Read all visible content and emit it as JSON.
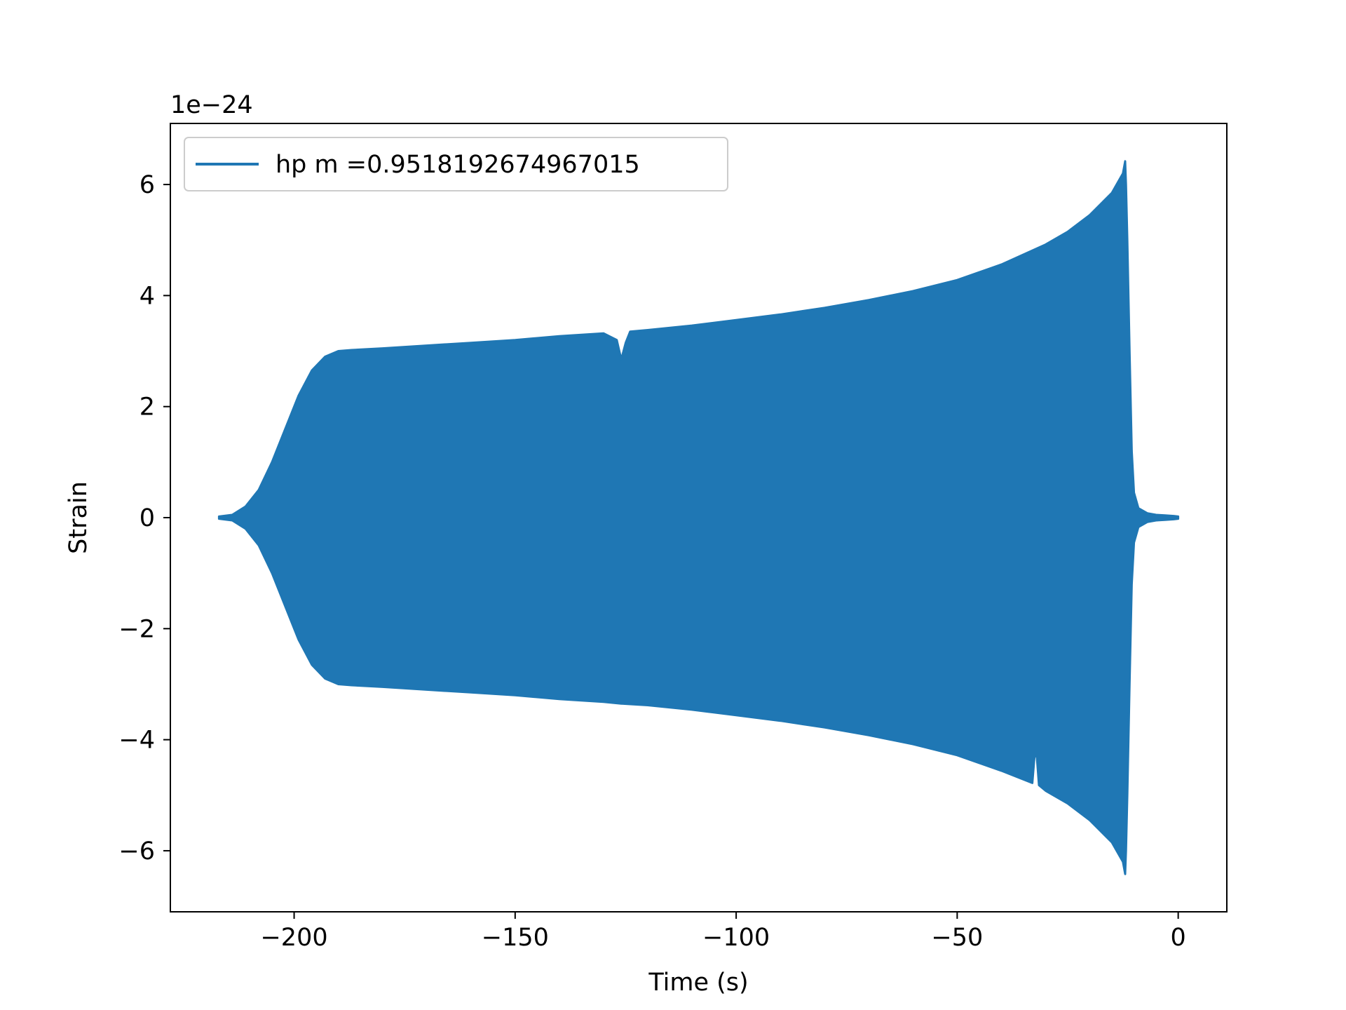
{
  "chart_data": {
    "type": "line",
    "title": "",
    "xlabel": "Time (s)",
    "ylabel": "Strain",
    "offset_text": "1e−24",
    "xlim": [
      -228,
      11
    ],
    "ylim": [
      -7.1,
      7.1
    ],
    "x_ticks": [
      -200,
      -150,
      -100,
      -50,
      0
    ],
    "x_tick_labels": [
      "−200",
      "−150",
      "−100",
      "−50",
      "0"
    ],
    "y_ticks": [
      -6,
      -4,
      -2,
      0,
      2,
      4,
      6
    ],
    "y_tick_labels": [
      "−6",
      "−4",
      "−2",
      "0",
      "2",
      "4",
      "6"
    ],
    "grid": false,
    "legend_position": "upper-left",
    "series": [
      {
        "name": "hp m =0.9518192674967015",
        "color": "#1f77b4",
        "envelope_upper": {
          "x": [
            -217,
            -214,
            -211,
            -208,
            -205,
            -202,
            -199,
            -196,
            -193,
            -190,
            -187,
            -180,
            -170,
            -160,
            -150,
            -140,
            -130,
            -127,
            -126,
            -125,
            -124,
            -120,
            -110,
            -100,
            -90,
            -80,
            -70,
            -60,
            -50,
            -40,
            -30,
            -25,
            -20,
            -15,
            -12.5,
            -12,
            -11.8,
            -11.5,
            -11,
            -10.5,
            -10,
            -9,
            -7,
            -5,
            -3,
            -1,
            0
          ],
          "y": [
            0.02,
            0.05,
            0.2,
            0.5,
            1.0,
            1.6,
            2.2,
            2.65,
            2.9,
            3.0,
            3.02,
            3.05,
            3.1,
            3.15,
            3.2,
            3.27,
            3.32,
            3.2,
            2.85,
            3.15,
            3.35,
            3.38,
            3.46,
            3.56,
            3.66,
            3.78,
            3.92,
            4.08,
            4.28,
            4.56,
            4.92,
            5.15,
            5.45,
            5.85,
            6.2,
            6.42,
            6.0,
            5.0,
            3.0,
            1.2,
            0.45,
            0.17,
            0.08,
            0.05,
            0.04,
            0.03,
            0.02
          ]
        },
        "envelope_lower": {
          "x": [
            -217,
            -214,
            -211,
            -208,
            -205,
            -202,
            -199,
            -196,
            -193,
            -190,
            -187,
            -180,
            -170,
            -160,
            -150,
            -140,
            -130,
            -126,
            -120,
            -110,
            -100,
            -90,
            -80,
            -70,
            -60,
            -50,
            -40,
            -33,
            -32.5,
            -32,
            -31.5,
            -30,
            -25,
            -20,
            -15,
            -12.5,
            -12,
            -11.8,
            -11.5,
            -11,
            -10.5,
            -10,
            -9,
            -7,
            -5,
            -3,
            -1,
            0
          ],
          "y": [
            -0.02,
            -0.05,
            -0.2,
            -0.5,
            -1.0,
            -1.6,
            -2.2,
            -2.65,
            -2.9,
            -3.0,
            -3.02,
            -3.05,
            -3.1,
            -3.15,
            -3.2,
            -3.27,
            -3.32,
            -3.35,
            -3.38,
            -3.46,
            -3.56,
            -3.66,
            -3.78,
            -3.92,
            -4.08,
            -4.28,
            -4.56,
            -4.78,
            -4.3,
            -4.3,
            -4.82,
            -4.92,
            -5.15,
            -5.45,
            -5.85,
            -6.2,
            -6.42,
            -6.0,
            -5.0,
            -3.0,
            -1.2,
            -0.45,
            -0.17,
            -0.08,
            -0.05,
            -0.04,
            -0.03,
            -0.02
          ]
        }
      }
    ]
  }
}
